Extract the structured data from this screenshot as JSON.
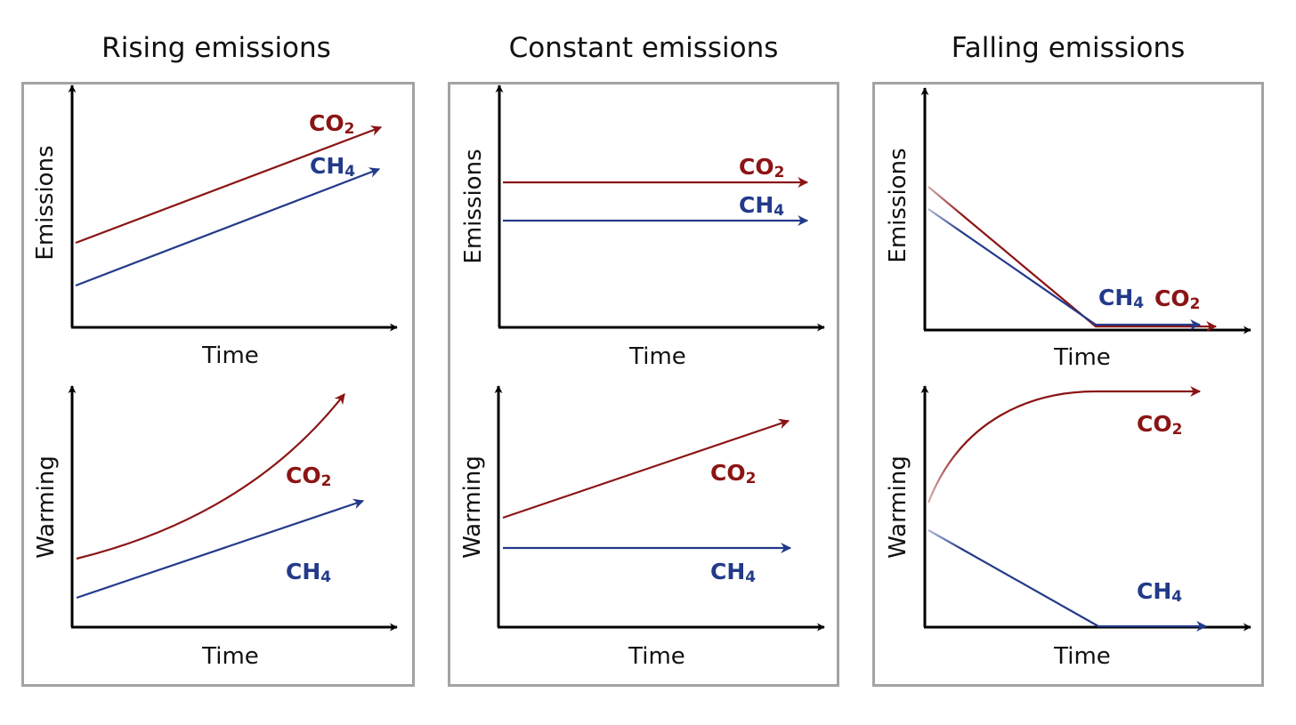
{
  "panels": [
    {
      "title": "Rising emissions"
    },
    {
      "title": "Constant emissions"
    },
    {
      "title": "Falling emissions"
    }
  ],
  "axes": {
    "x_label": "Time",
    "top_y_label": "Emissions",
    "bottom_y_label": "Warming"
  },
  "series": {
    "co2": {
      "base": "CO",
      "sub": "2",
      "color": "#8b1414"
    },
    "ch4": {
      "base": "CH",
      "sub": "4",
      "color": "#233a8a"
    }
  },
  "colors": {
    "axis": "#000000",
    "frame": "#a3a3a3"
  }
}
